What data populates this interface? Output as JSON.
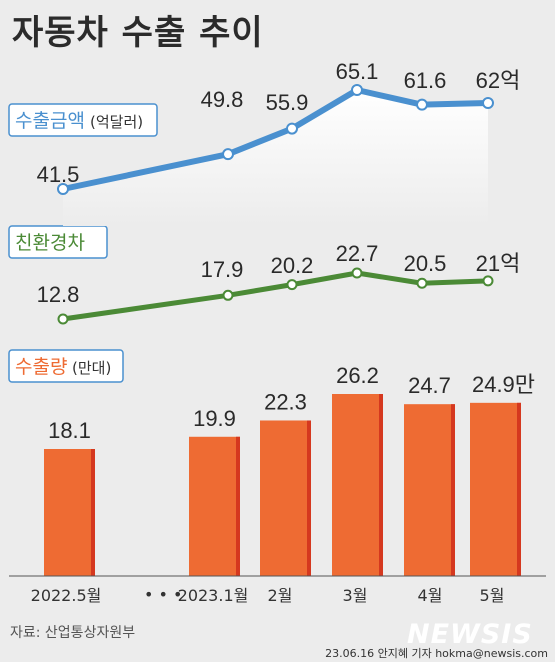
{
  "title": "자동차 수출 추이",
  "source": "자료: 산업통상자원부",
  "credit": "23.06.16 안지혜 기자 hokma@newsis.com",
  "logo": "NEWSIS",
  "x_break": "• • •",
  "colors": {
    "export_amount": "#4a90cf",
    "eco_car": "#4b8a36",
    "export_volume_bar": "#ee6b33",
    "export_volume_edge": "#d5381f",
    "label_box_border": "#4a90cf"
  },
  "chart_data": [
    {
      "type": "line",
      "label": "수출금액",
      "unit": "(억달러)",
      "color": "#4a90cf",
      "area_fill": true,
      "categories": [
        "2022.5월",
        "2023.1월",
        "2월",
        "3월",
        "4월",
        "5월"
      ],
      "values": [
        41.5,
        49.8,
        55.9,
        65.1,
        61.6,
        62
      ],
      "value_labels": [
        "41.5",
        "49.8",
        "55.9",
        "65.1",
        "61.6",
        "62억"
      ]
    },
    {
      "type": "line",
      "label": "친환경차",
      "unit": "",
      "color": "#4b8a36",
      "categories": [
        "2022.5월",
        "2023.1월",
        "2월",
        "3월",
        "4월",
        "5월"
      ],
      "values": [
        12.8,
        17.9,
        20.2,
        22.7,
        20.5,
        21
      ],
      "value_labels": [
        "12.8",
        "17.9",
        "20.2",
        "22.7",
        "20.5",
        "21억"
      ]
    },
    {
      "type": "bar",
      "label": "수출량",
      "unit": "(만대)",
      "color": "#ee6b33",
      "categories": [
        "2022.5월",
        "2023.1월",
        "2월",
        "3월",
        "4월",
        "5월"
      ],
      "values": [
        18.1,
        19.9,
        22.3,
        26.2,
        24.7,
        24.9
      ],
      "value_labels": [
        "18.1",
        "19.9",
        "22.3",
        "26.2",
        "24.7",
        "24.9만"
      ]
    }
  ]
}
